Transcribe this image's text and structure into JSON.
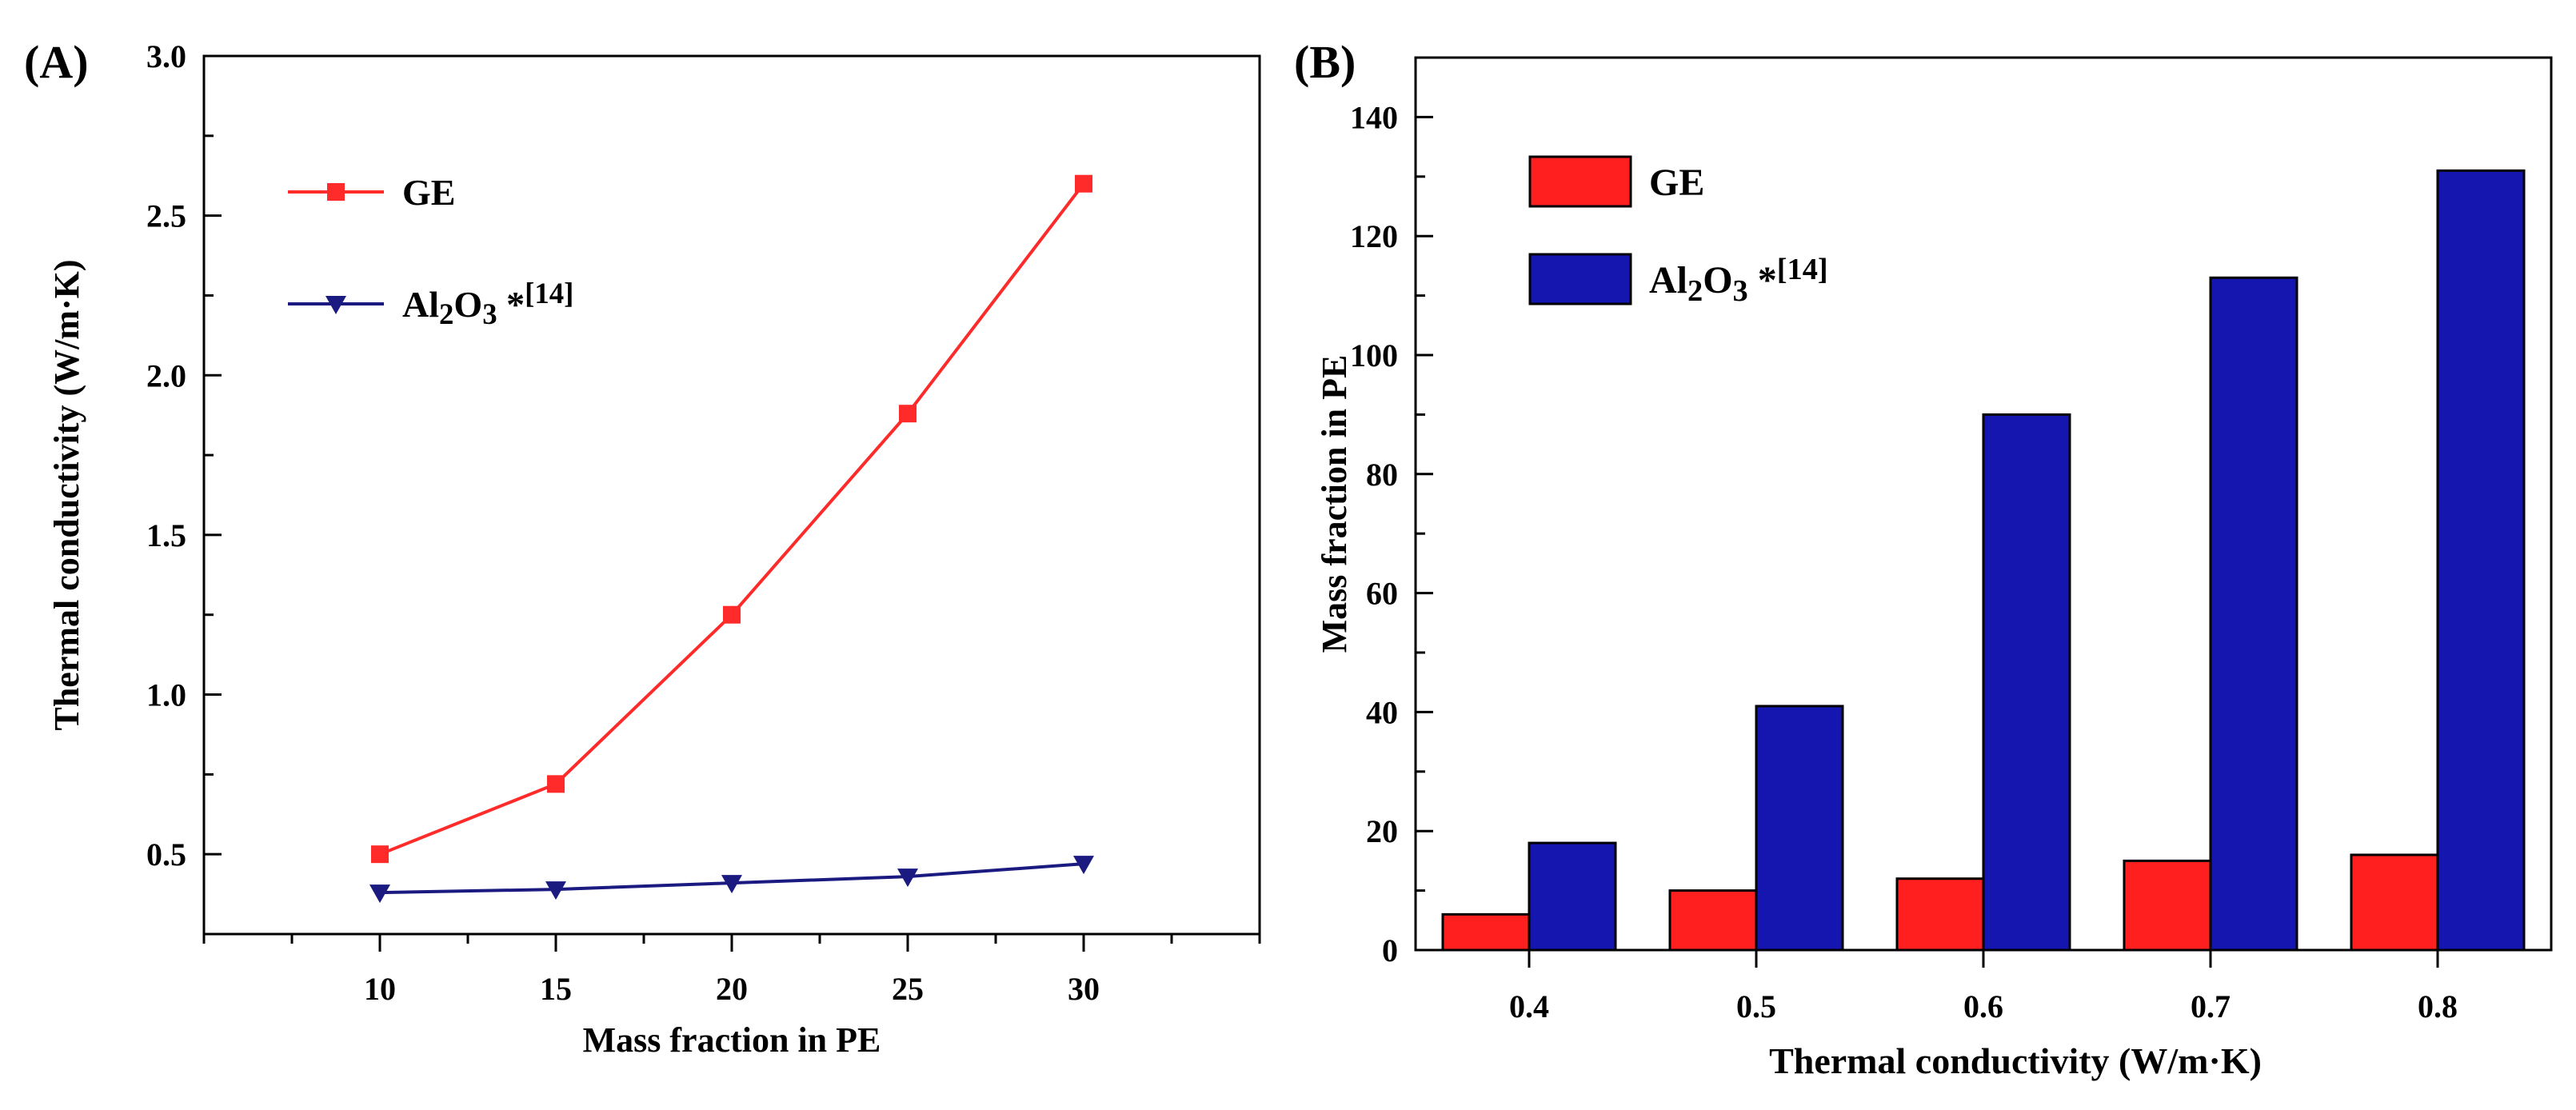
{
  "chart_data": [
    {
      "panel_label": "(A)",
      "type": "line",
      "title": "",
      "xlabel": "Mass fraction in PE",
      "ylabel": "Thermal conductivity (W/m·K)",
      "x": [
        10,
        15,
        20,
        25,
        30
      ],
      "xlim": [
        5,
        35
      ],
      "ylim": [
        0.25,
        3.0
      ],
      "xticks": [
        10,
        15,
        20,
        25,
        30
      ],
      "yticks": [
        0.5,
        1.0,
        1.5,
        2.0,
        2.5,
        3.0
      ],
      "ytick_labels": [
        "0.5",
        "1.0",
        "1.5",
        "2.0",
        "2.5",
        "3.0"
      ],
      "legend_position": "top-left",
      "series": [
        {
          "name": "GE",
          "legend_main": "GE",
          "color": "#ff2a2a",
          "marker": "square",
          "values": [
            0.5,
            0.72,
            1.25,
            1.88,
            2.6
          ]
        },
        {
          "name": "Al2O3 *[14]",
          "legend_main": "Al",
          "legend_sub1": "2",
          "legend_mid": "O",
          "legend_sub2": "3",
          "legend_tail": " *",
          "legend_sup": "[14]",
          "color": "#1a1a80",
          "marker": "triangle-down",
          "values": [
            0.38,
            0.39,
            0.41,
            0.43,
            0.47
          ]
        }
      ]
    },
    {
      "panel_label": "(B)",
      "type": "bar",
      "title": "",
      "xlabel": "Thermal conductivity (W/m·K)",
      "ylabel": "Mass fraction in PE",
      "categories": [
        "0.4",
        "0.5",
        "0.6",
        "0.7",
        "0.8"
      ],
      "ylim": [
        0,
        150
      ],
      "yticks": [
        0,
        20,
        40,
        60,
        80,
        100,
        120,
        140
      ],
      "legend_position": "top-left",
      "series": [
        {
          "name": "GE",
          "legend_main": "GE",
          "color": "#ff1f1f",
          "values": [
            6,
            10,
            12,
            15,
            16
          ]
        },
        {
          "name": "Al2O3 *[14]",
          "legend_main": "Al",
          "legend_sub1": "2",
          "legend_mid": "O",
          "legend_sub2": "3",
          "legend_tail": " *",
          "legend_sup": "[14]",
          "color": "#1515b0",
          "values": [
            18,
            41,
            90,
            113,
            131
          ]
        }
      ]
    }
  ]
}
